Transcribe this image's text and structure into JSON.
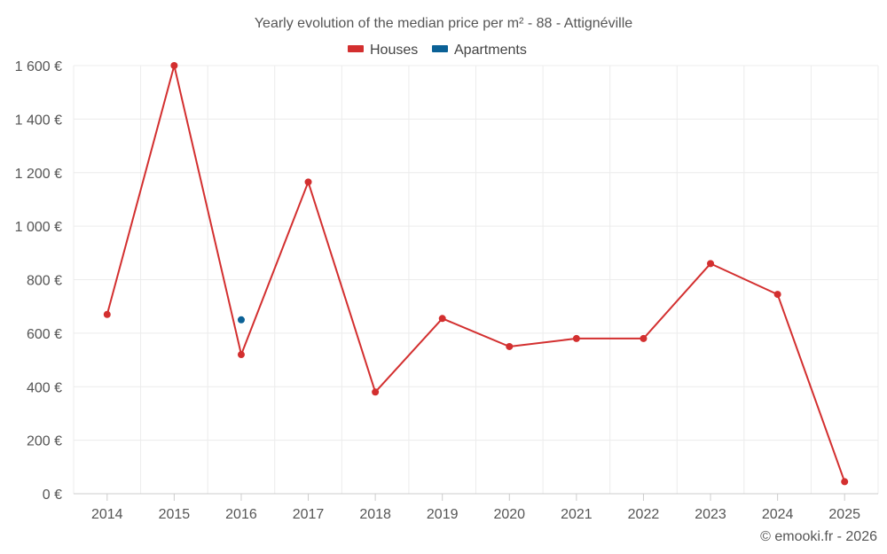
{
  "chart_data": {
    "type": "line",
    "title": "Yearly evolution of the median price per m² - 88 - Attignéville",
    "categories": [
      "2014",
      "2015",
      "2016",
      "2017",
      "2018",
      "2019",
      "2020",
      "2021",
      "2022",
      "2023",
      "2024",
      "2025"
    ],
    "ylim": [
      0,
      1600
    ],
    "yticks": [
      0,
      200,
      400,
      600,
      800,
      1000,
      1200,
      1400,
      1600
    ],
    "ytick_labels": [
      "0 €",
      "200 €",
      "400 €",
      "600 €",
      "800 €",
      "1 000 €",
      "1 200 €",
      "1 400 €",
      "1 600 €"
    ],
    "grid": true,
    "legend_position": "top-center",
    "series": [
      {
        "name": "Houses",
        "color": "#d32f2f",
        "values": [
          670,
          1600,
          520,
          1165,
          380,
          655,
          550,
          580,
          580,
          860,
          745,
          45
        ]
      },
      {
        "name": "Apartments",
        "color": "#0b6196",
        "values": [
          null,
          null,
          650,
          null,
          null,
          null,
          null,
          null,
          null,
          null,
          null,
          null
        ]
      }
    ]
  },
  "credit": "© emooki.fr - 2026"
}
